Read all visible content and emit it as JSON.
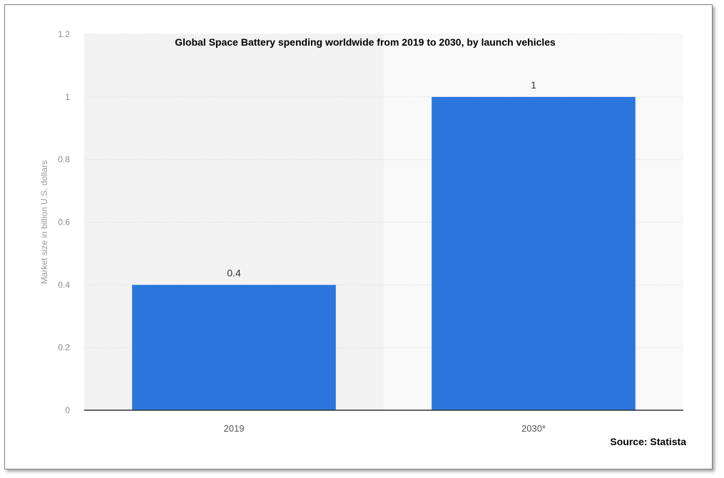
{
  "chart_data": {
    "type": "bar",
    "title": "Global Space Battery spending worldwide from 2019 to 2030, by launch vehicles",
    "xlabel": "",
    "ylabel": "Market size in billion U.S. dollars",
    "categories": [
      "2019",
      "2030*"
    ],
    "values": [
      0.4,
      1
    ],
    "data_labels": [
      "0.4",
      "1"
    ],
    "ylim": [
      0,
      1.2
    ],
    "yticks": [
      0,
      0.2,
      0.4,
      0.6,
      0.8,
      1,
      1.2
    ],
    "ytick_labels": [
      "0",
      "0.2",
      "0.4",
      "0.6",
      "0.8",
      "1",
      "1.2"
    ],
    "grid": true,
    "legend": "none",
    "bar_color": "#2a76dd",
    "source": "Source: Statista"
  }
}
